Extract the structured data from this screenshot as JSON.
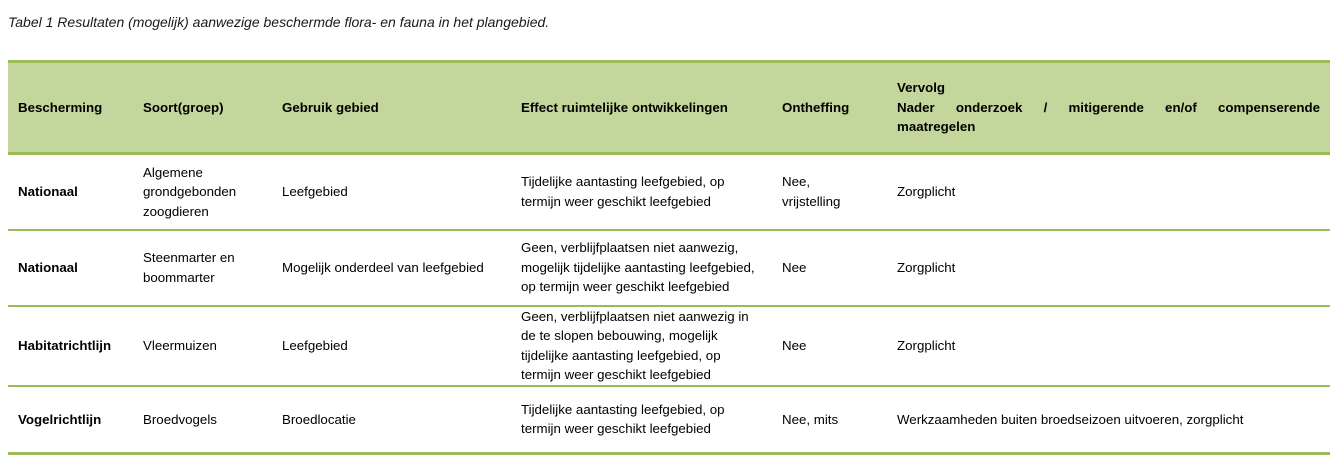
{
  "caption": "Tabel 1 Resultaten (mogelijk) aanwezige beschermde flora- en fauna in het plangebied.",
  "table": {
    "headers": {
      "bescherming": "Bescherming",
      "soort": "Soort(groep)",
      "gebruik": "Gebruik gebied",
      "effect": "Effect ruimtelijke ontwikkelingen",
      "ontheffing": "Ontheffing",
      "vervolg_line1": "Vervolg",
      "vervolg_line2": "Nader onderzoek / mitigerende en/of compenserende",
      "vervolg_line3": "maatregelen"
    },
    "rows": [
      {
        "bescherming": "Nationaal",
        "soort": "Algemene grondgebonden zoogdieren",
        "gebruik": "Leefgebied",
        "effect": "Tijdelijke aantasting leefgebied, op termijn weer geschikt leefgebied",
        "ontheffing": "Nee, vrijstelling",
        "vervolg": "Zorgplicht"
      },
      {
        "bescherming": "Nationaal",
        "soort": "Steenmarter en boommarter",
        "gebruik": "Mogelijk onderdeel van leefgebied",
        "effect": "Geen, verblijfplaatsen niet aanwezig, mogelijk tijdelijke aantasting leefgebied, op termijn weer geschikt leefgebied",
        "ontheffing": "Nee",
        "vervolg": "Zorgplicht"
      },
      {
        "bescherming": "Habitatrichtlijn",
        "soort": "Vleermuizen",
        "gebruik": "Leefgebied",
        "effect": "Geen, verblijfplaatsen niet aanwezig in de te slopen bebouwing, mogelijk tijdelijke aantasting leefgebied, op termijn weer geschikt leefgebied",
        "ontheffing": "Nee",
        "vervolg": "Zorgplicht"
      },
      {
        "bescherming": "Vogelrichtlijn",
        "soort": "Broedvogels",
        "gebruik": "Broedlocatie",
        "effect": "Tijdelijke aantasting leefgebied, op termijn weer geschikt leefgebied",
        "ontheffing": "Nee, mits",
        "vervolg": "Werkzaamheden buiten broedseizoen uitvoeren, zorgplicht"
      }
    ]
  },
  "colors": {
    "header_fill": "#c3d69b",
    "border": "#9bbb59"
  }
}
